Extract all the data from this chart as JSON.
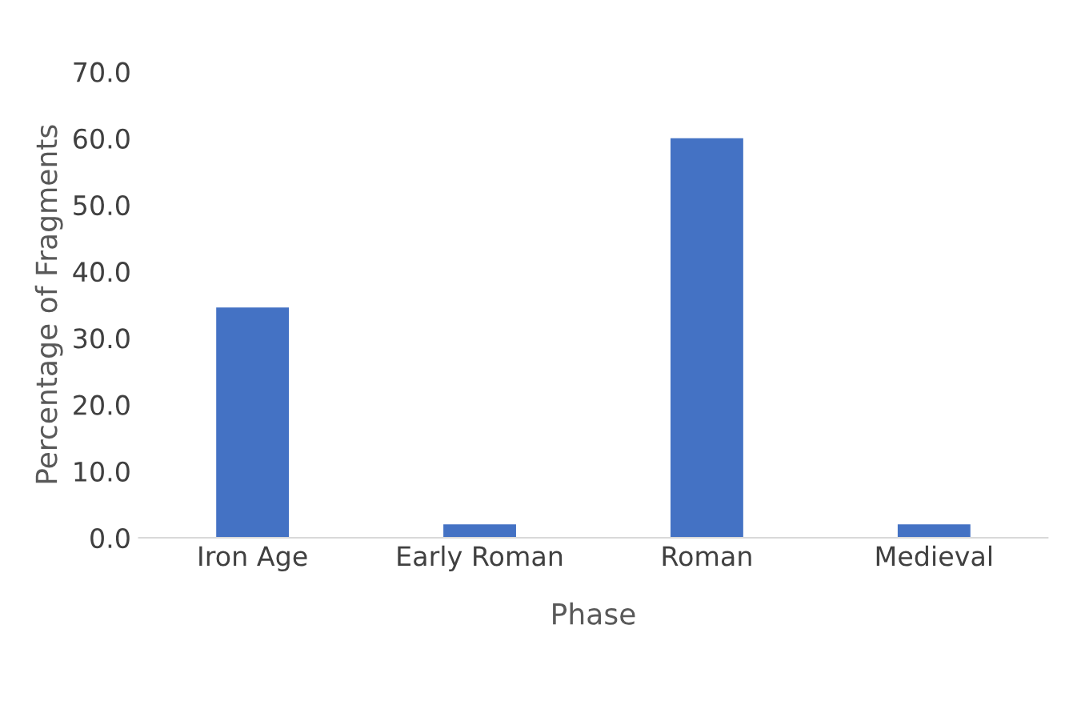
{
  "chart_data": {
    "type": "bar",
    "xlabel": "Phase",
    "ylabel": "Percentage of Fragments",
    "categories": [
      "Iron Age",
      "Early Roman",
      "Roman",
      "Medieval"
    ],
    "values": [
      34.6,
      2.0,
      60.0,
      2.0
    ],
    "color": "#4472c4",
    "ylim": [
      0,
      70
    ],
    "yticks": [
      {
        "value": 0,
        "label": "0.0"
      },
      {
        "value": 10,
        "label": "10.0"
      },
      {
        "value": 20,
        "label": "20.0"
      },
      {
        "value": 30,
        "label": "30.0"
      },
      {
        "value": 40,
        "label": "40.0"
      },
      {
        "value": 50,
        "label": "50.0"
      },
      {
        "value": 60,
        "label": "60.0"
      },
      {
        "value": 70,
        "label": "70.0"
      }
    ],
    "grid": false
  }
}
